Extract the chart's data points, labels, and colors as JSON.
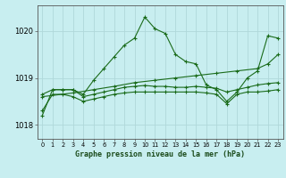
{
  "title": "Graphe pression niveau de la mer (hPa)",
  "bg_color": "#c8eef0",
  "grid_color": "#b0d8da",
  "line_color": "#1a6b1a",
  "marker_color": "#1a6b1a",
  "xlim": [
    -0.5,
    23.5
  ],
  "ylim": [
    1017.7,
    1020.55
  ],
  "yticks": [
    1018,
    1019,
    1020
  ],
  "xticks": [
    0,
    1,
    2,
    3,
    4,
    5,
    6,
    7,
    8,
    9,
    10,
    11,
    12,
    13,
    14,
    15,
    16,
    17,
    18,
    19,
    20,
    21,
    22,
    23
  ],
  "series": [
    {
      "x": [
        0,
        1,
        2,
        3,
        4,
        5,
        6,
        7,
        8,
        9,
        10,
        11,
        12,
        13,
        14,
        15,
        16,
        17,
        18,
        19,
        20,
        21,
        22,
        23
      ],
      "y": [
        1018.2,
        1018.75,
        1018.75,
        1018.75,
        1018.65,
        1018.95,
        1019.2,
        1019.45,
        1019.7,
        1019.85,
        1020.3,
        1020.05,
        1019.95,
        1019.5,
        1019.35,
        1019.3,
        1018.85,
        1018.75,
        1018.5,
        1018.7,
        1019.0,
        1019.15,
        1019.9,
        1019.85
      ]
    },
    {
      "x": [
        0,
        3,
        5,
        7,
        9,
        11,
        13,
        15,
        17,
        19,
        21,
        22,
        23
      ],
      "y": [
        1018.6,
        1018.68,
        1018.75,
        1018.82,
        1018.9,
        1018.95,
        1019.0,
        1019.05,
        1019.1,
        1019.15,
        1019.2,
        1019.3,
        1019.5
      ]
    },
    {
      "x": [
        0,
        1,
        2,
        3,
        4,
        5,
        6,
        7,
        8,
        9,
        10,
        11,
        12,
        13,
        14,
        15,
        16,
        17,
        18,
        19,
        20,
        21,
        22,
        23
      ],
      "y": [
        1018.65,
        1018.75,
        1018.75,
        1018.75,
        1018.6,
        1018.65,
        1018.7,
        1018.75,
        1018.8,
        1018.82,
        1018.84,
        1018.82,
        1018.82,
        1018.8,
        1018.8,
        1018.82,
        1018.8,
        1018.78,
        1018.7,
        1018.75,
        1018.8,
        1018.85,
        1018.88,
        1018.9
      ]
    },
    {
      "x": [
        0,
        1,
        2,
        3,
        4,
        5,
        6,
        7,
        8,
        9,
        10,
        11,
        12,
        13,
        14,
        15,
        16,
        17,
        18,
        19,
        20,
        21,
        22,
        23
      ],
      "y": [
        1018.3,
        1018.65,
        1018.65,
        1018.6,
        1018.5,
        1018.55,
        1018.6,
        1018.65,
        1018.68,
        1018.7,
        1018.7,
        1018.7,
        1018.7,
        1018.7,
        1018.7,
        1018.7,
        1018.68,
        1018.65,
        1018.45,
        1018.65,
        1018.7,
        1018.7,
        1018.72,
        1018.75
      ]
    }
  ]
}
